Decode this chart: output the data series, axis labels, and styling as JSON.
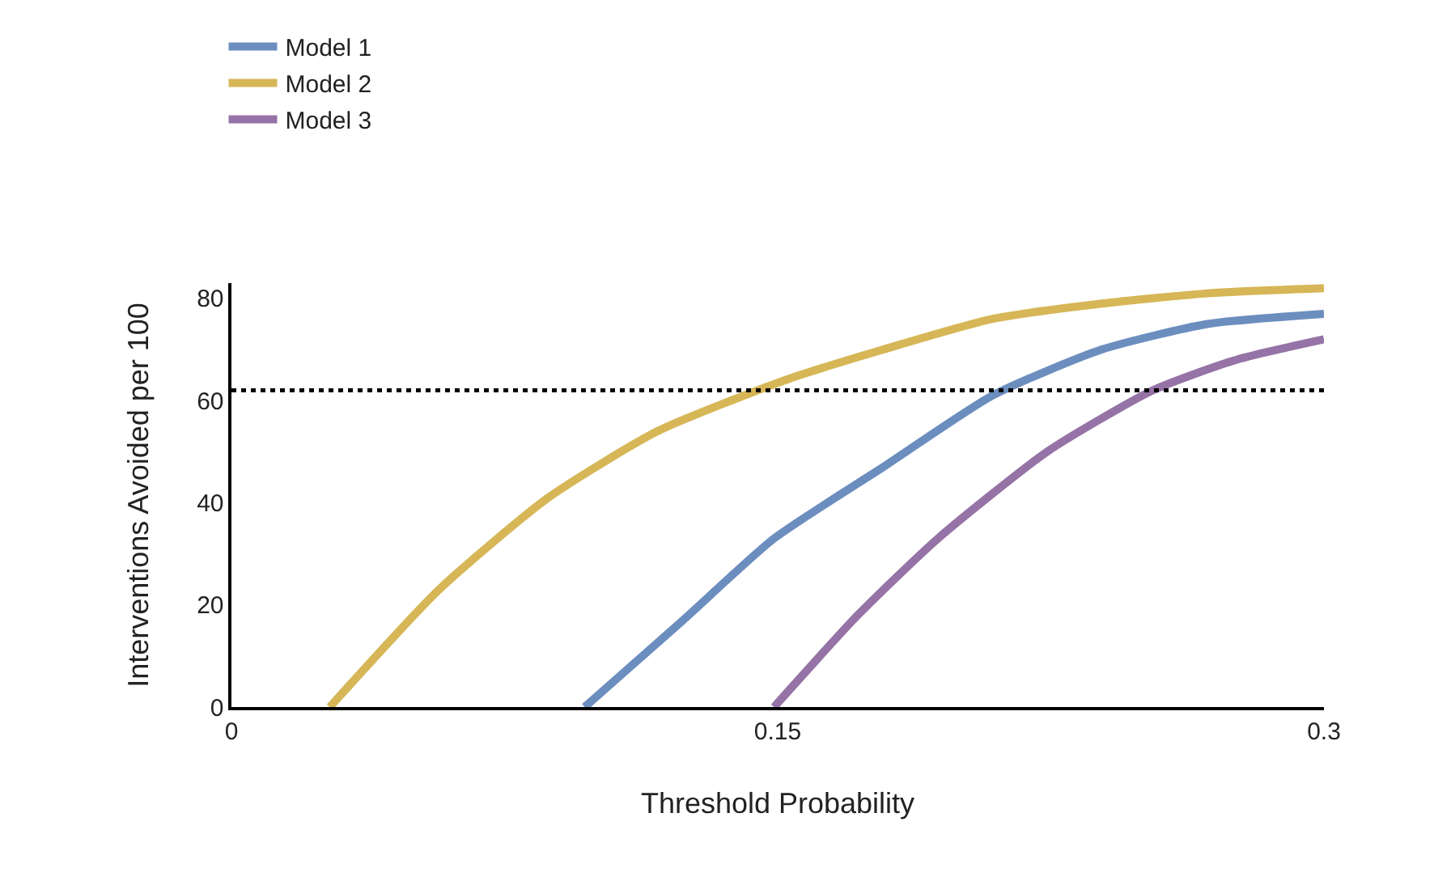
{
  "chart_data": {
    "type": "line",
    "xlabel": "Threshold Probability",
    "ylabel": "Interventions Avoided per 100",
    "xlim": [
      0,
      0.3
    ],
    "xticks": [
      0,
      0.15,
      0.3
    ],
    "ylim": [
      0,
      83
    ],
    "yticks": [
      0,
      20,
      40,
      60,
      80
    ],
    "legend": "top left",
    "marker": "none",
    "line_style": "solid",
    "series": [
      {
        "name": "Model 1",
        "color": "#6c8ebf",
        "x": [
          0.097,
          0.124,
          0.149,
          0.179,
          0.209,
          0.239,
          0.268,
          0.3
        ],
        "values": [
          0,
          17,
          33,
          47,
          61,
          70,
          75,
          77
        ]
      },
      {
        "name": "Model 2",
        "color": "#d6b656",
        "x": [
          0.027,
          0.057,
          0.087,
          0.117,
          0.152,
          0.179,
          0.209,
          0.239,
          0.268,
          0.3
        ],
        "values": [
          0,
          23,
          41,
          54,
          64,
          70,
          76,
          79,
          81,
          82
        ]
      },
      {
        "name": "Model 3",
        "color": "#9673a6",
        "x": [
          0.149,
          0.172,
          0.194,
          0.224,
          0.253,
          0.276,
          0.3
        ],
        "values": [
          0,
          18,
          33,
          50,
          62,
          68,
          72
        ]
      }
    ],
    "ref_lines": [
      {
        "axis": "y",
        "value": 62,
        "label": null,
        "color": "#000000",
        "line_style": "dotted"
      }
    ]
  }
}
